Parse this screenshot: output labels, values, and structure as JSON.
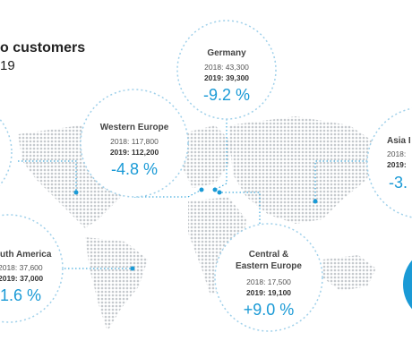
{
  "header": {
    "title": "o customers",
    "subtitle": "19"
  },
  "regions": [
    {
      "name": "Germany",
      "y2018": "2018: 43,300",
      "y2019": "2019: 39,300",
      "change": "-9.2 %"
    },
    {
      "name": "Western Europe",
      "y2018": "2018: 117,800",
      "y2019": "2019: 112,200",
      "change": "-4.8 %"
    },
    {
      "name": "uth America",
      "y2018": "2018: 37,600",
      "y2019": "2019: 37,000",
      "change": "1.6 %"
    },
    {
      "name": "Central &",
      "name2": "Eastern Europe",
      "y2018": "2018: 17,500",
      "y2019": "2019: 19,100",
      "change": "+9.0 %"
    },
    {
      "name": "Asia I",
      "y2018": "2018:",
      "y2019": "2019:",
      "change": "-3."
    }
  ]
}
